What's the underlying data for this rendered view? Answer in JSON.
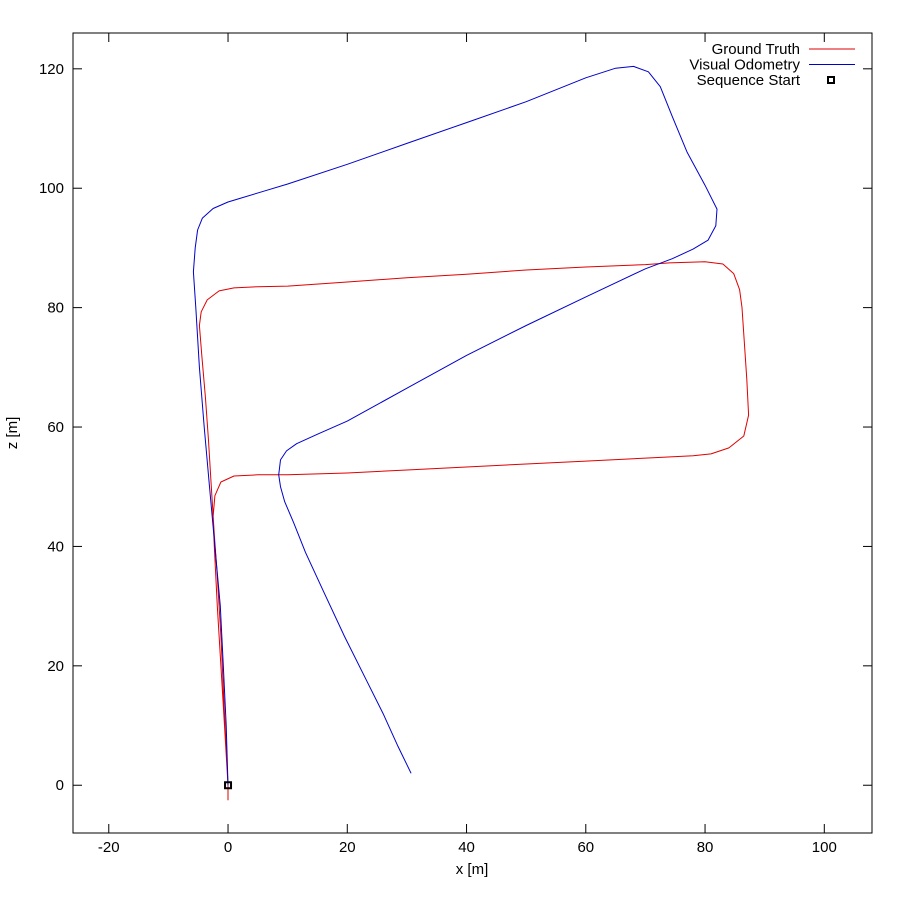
{
  "chart_data": {
    "type": "line",
    "xlabel": "x [m]",
    "ylabel": "z [m]",
    "xlim": [
      -26,
      108
    ],
    "ylim": [
      -8,
      126
    ],
    "xticks": [
      -20,
      0,
      20,
      40,
      60,
      80,
      100
    ],
    "yticks": [
      0,
      20,
      40,
      60,
      80,
      100,
      120
    ],
    "grid": false,
    "legend_position": "top-right",
    "series": [
      {
        "name": "Ground Truth",
        "color": "#e00000",
        "points": [
          [
            0,
            -2.5
          ],
          [
            0,
            0
          ],
          [
            -0.6,
            10
          ],
          [
            -1.2,
            20
          ],
          [
            -1.8,
            30
          ],
          [
            -2.3,
            40
          ],
          [
            -2.5,
            45
          ],
          [
            -2.2,
            48.5
          ],
          [
            -1.2,
            50.8
          ],
          [
            1,
            51.8
          ],
          [
            5,
            52
          ],
          [
            10,
            52
          ],
          [
            20,
            52.3
          ],
          [
            30,
            52.8
          ],
          [
            40,
            53.3
          ],
          [
            50,
            53.8
          ],
          [
            60,
            54.3
          ],
          [
            70,
            54.8
          ],
          [
            78,
            55.2
          ],
          [
            81,
            55.5
          ],
          [
            84,
            56.5
          ],
          [
            86.5,
            58.5
          ],
          [
            87.3,
            62
          ],
          [
            87,
            68
          ],
          [
            86.6,
            74
          ],
          [
            86.2,
            80
          ],
          [
            85.8,
            83
          ],
          [
            84.8,
            85.7
          ],
          [
            83,
            87.3
          ],
          [
            80,
            87.7
          ],
          [
            74,
            87.5
          ],
          [
            70,
            87.2
          ],
          [
            60,
            86.8
          ],
          [
            50,
            86.3
          ],
          [
            40,
            85.6
          ],
          [
            30,
            85
          ],
          [
            20,
            84.3
          ],
          [
            10,
            83.6
          ],
          [
            5,
            83.5
          ],
          [
            1,
            83.3
          ],
          [
            -1.5,
            82.8
          ],
          [
            -3.5,
            81.3
          ],
          [
            -4.5,
            79.3
          ],
          [
            -4.8,
            77
          ],
          [
            -4.4,
            72
          ],
          [
            -3.8,
            65
          ],
          [
            -3.3,
            58
          ],
          [
            -2.8,
            50
          ],
          [
            -2.3,
            42
          ],
          [
            -1.8,
            35
          ],
          [
            -1.2,
            25
          ],
          [
            -0.6,
            12
          ],
          [
            0,
            0
          ]
        ]
      },
      {
        "name": "Visual Odometry",
        "color": "#0000cc",
        "points": [
          [
            0,
            0
          ],
          [
            -0.3,
            10
          ],
          [
            -0.8,
            20
          ],
          [
            -1.3,
            30
          ],
          [
            -2.2,
            40
          ],
          [
            -3.1,
            50
          ],
          [
            -4,
            60
          ],
          [
            -4.8,
            70
          ],
          [
            -5.4,
            80
          ],
          [
            -5.8,
            86
          ],
          [
            -5.5,
            90
          ],
          [
            -5.1,
            93
          ],
          [
            -4.3,
            95
          ],
          [
            -2.5,
            96.6
          ],
          [
            0,
            97.7
          ],
          [
            2,
            98.3
          ],
          [
            6,
            99.5
          ],
          [
            10,
            100.7
          ],
          [
            20,
            104
          ],
          [
            30,
            107.5
          ],
          [
            40,
            111
          ],
          [
            50,
            114.5
          ],
          [
            60,
            118.5
          ],
          [
            65,
            120.1
          ],
          [
            68,
            120.4
          ],
          [
            70.5,
            119.5
          ],
          [
            72.5,
            117
          ],
          [
            74.5,
            112
          ],
          [
            77,
            106
          ],
          [
            80,
            100.5
          ],
          [
            82,
            96.5
          ],
          [
            81.8,
            93.7
          ],
          [
            80.5,
            91.3
          ],
          [
            78,
            89.8
          ],
          [
            74.5,
            88.2
          ],
          [
            70,
            86.5
          ],
          [
            60,
            81.8
          ],
          [
            50,
            77
          ],
          [
            40,
            72
          ],
          [
            30,
            66.5
          ],
          [
            20,
            61
          ],
          [
            15,
            58.8
          ],
          [
            11.5,
            57.2
          ],
          [
            9.8,
            56
          ],
          [
            8.8,
            54.5
          ],
          [
            8.5,
            52
          ],
          [
            8.8,
            50
          ],
          [
            9.5,
            47.5
          ],
          [
            11,
            44
          ],
          [
            13,
            39
          ],
          [
            16,
            32.5
          ],
          [
            19.5,
            25
          ],
          [
            23,
            18
          ],
          [
            26,
            12
          ],
          [
            28.5,
            6.5
          ],
          [
            30.7,
            2
          ]
        ]
      },
      {
        "name": "Sequence Start",
        "color": "#000000",
        "marker": "square",
        "points": [
          [
            0,
            0
          ]
        ]
      }
    ]
  }
}
